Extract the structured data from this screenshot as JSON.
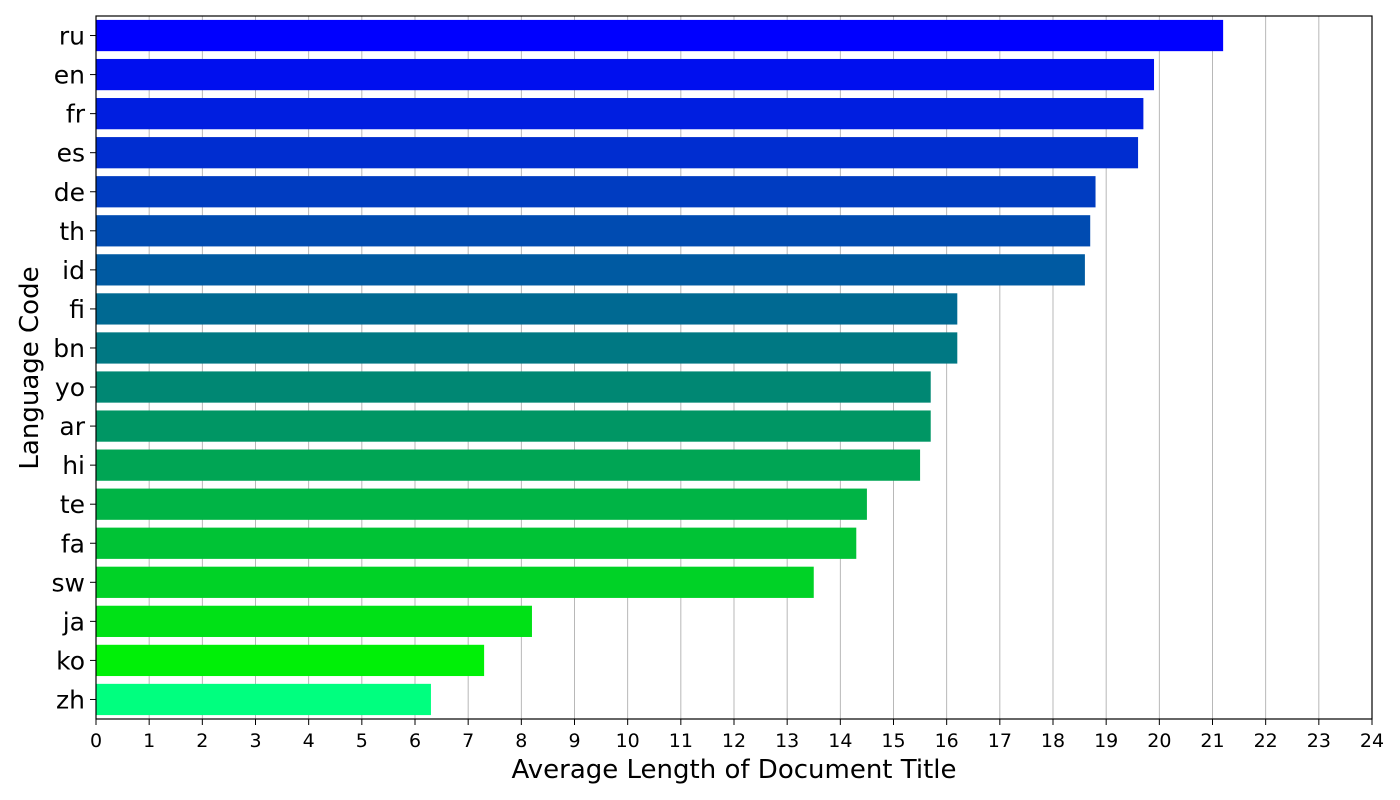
{
  "chart_data": {
    "type": "bar",
    "orientation": "horizontal",
    "title": "",
    "xlabel": "Average Length of Document Title",
    "ylabel": "Language Code",
    "xlim": [
      0,
      24
    ],
    "x_ticks": [
      0,
      1,
      2,
      3,
      4,
      5,
      6,
      7,
      8,
      9,
      10,
      11,
      12,
      13,
      14,
      15,
      16,
      17,
      18,
      19,
      20,
      21,
      22,
      23,
      24
    ],
    "grid": "vertical",
    "categories": [
      "ru",
      "en",
      "fr",
      "es",
      "de",
      "th",
      "id",
      "fi",
      "bn",
      "yo",
      "ar",
      "hi",
      "te",
      "fa",
      "sw",
      "ja",
      "ko",
      "zh"
    ],
    "values": [
      21.2,
      19.9,
      19.7,
      19.6,
      18.8,
      18.7,
      18.6,
      16.2,
      16.2,
      15.7,
      15.7,
      15.5,
      14.5,
      14.3,
      13.5,
      8.2,
      7.3,
      6.3
    ],
    "colors": [
      "#0000ff",
      "#000fef",
      "#001ee0",
      "#002dd0",
      "#003cc1",
      "#004bb1",
      "#005aa2",
      "#006992",
      "#007883",
      "#008773",
      "#009664",
      "#00a554",
      "#00b445",
      "#00c335",
      "#00d226",
      "#00e116",
      "#00f007",
      "#00ff7f"
    ],
    "colormap": "winter"
  }
}
